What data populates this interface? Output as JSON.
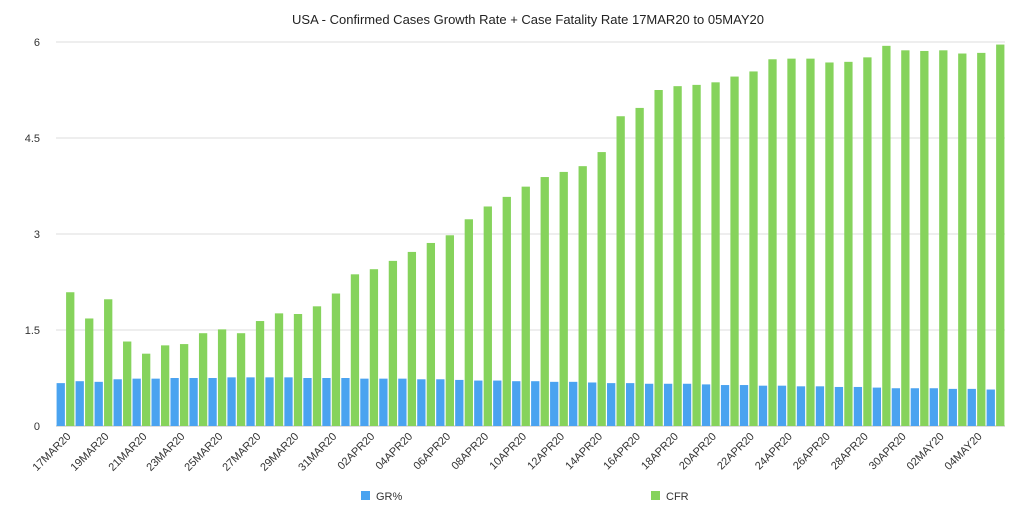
{
  "chart_data": {
    "type": "bar",
    "title": "USA - Confirmed Cases Growth Rate + Case Fatality Rate 17MAR20 to 05MAY20",
    "xlabel": "",
    "ylabel": "",
    "ylim": [
      0,
      6
    ],
    "yticks": [
      "0",
      "1.5",
      "3",
      "4.5",
      "6"
    ],
    "grid": true,
    "legend_position": "bottom",
    "categories": [
      "17MAR20",
      "18MAR20",
      "19MAR20",
      "20MAR20",
      "21MAR20",
      "22MAR20",
      "23MAR20",
      "24MAR20",
      "25MAR20",
      "26MAR20",
      "27MAR20",
      "28MAR20",
      "29MAR20",
      "30MAR20",
      "31MAR20",
      "01APR20",
      "02APR20",
      "03APR20",
      "04APR20",
      "05APR20",
      "06APR20",
      "07APR20",
      "08APR20",
      "09APR20",
      "10APR20",
      "11APR20",
      "12APR20",
      "13APR20",
      "14APR20",
      "15APR20",
      "16APR20",
      "17APR20",
      "18APR20",
      "19APR20",
      "20APR20",
      "21APR20",
      "22APR20",
      "23APR20",
      "24APR20",
      "25APR20",
      "26APR20",
      "27APR20",
      "28APR20",
      "29APR20",
      "30APR20",
      "01MAY20",
      "02MAY20",
      "03MAY20",
      "04MAY20",
      "05MAY20"
    ],
    "tick_labels": [
      "17MAR20",
      "",
      "19MAR20",
      "",
      "21MAR20",
      "",
      "23MAR20",
      "",
      "25MAR20",
      "",
      "27MAR20",
      "",
      "29MAR20",
      "",
      "31MAR20",
      "",
      "02APR20",
      "",
      "04APR20",
      "",
      "06APR20",
      "",
      "08APR20",
      "",
      "10APR20",
      "",
      "12APR20",
      "",
      "14APR20",
      "",
      "16APR20",
      "",
      "18APR20",
      "",
      "20APR20",
      "",
      "22APR20",
      "",
      "24APR20",
      "",
      "26APR20",
      "",
      "28APR20",
      "",
      "30APR20",
      "",
      "02MAY20",
      "",
      "04MAY20",
      ""
    ],
    "series": [
      {
        "name": "GR%",
        "color": "#4aa3f0",
        "values": [
          0.67,
          0.7,
          0.69,
          0.73,
          0.74,
          0.74,
          0.75,
          0.75,
          0.75,
          0.76,
          0.76,
          0.76,
          0.76,
          0.75,
          0.75,
          0.75,
          0.74,
          0.74,
          0.74,
          0.73,
          0.73,
          0.72,
          0.71,
          0.71,
          0.7,
          0.7,
          0.69,
          0.69,
          0.68,
          0.67,
          0.67,
          0.66,
          0.66,
          0.66,
          0.65,
          0.64,
          0.64,
          0.63,
          0.63,
          0.62,
          0.62,
          0.61,
          0.61,
          0.6,
          0.59,
          0.59,
          0.59,
          0.58,
          0.58,
          0.57
        ]
      },
      {
        "name": "CFR",
        "color": "#86d35c",
        "values": [
          2.09,
          1.68,
          1.98,
          1.32,
          1.13,
          1.26,
          1.28,
          1.45,
          1.51,
          1.45,
          1.64,
          1.76,
          1.75,
          1.87,
          2.07,
          2.37,
          2.45,
          2.58,
          2.72,
          2.86,
          2.98,
          3.23,
          3.43,
          3.58,
          3.74,
          3.89,
          3.97,
          4.06,
          4.28,
          4.84,
          4.97,
          5.25,
          5.31,
          5.33,
          5.37,
          5.46,
          5.54,
          5.73,
          5.74,
          5.74,
          5.68,
          5.69,
          5.76,
          5.94,
          5.87,
          5.86,
          5.87,
          5.82,
          5.83,
          5.96
        ]
      }
    ]
  }
}
